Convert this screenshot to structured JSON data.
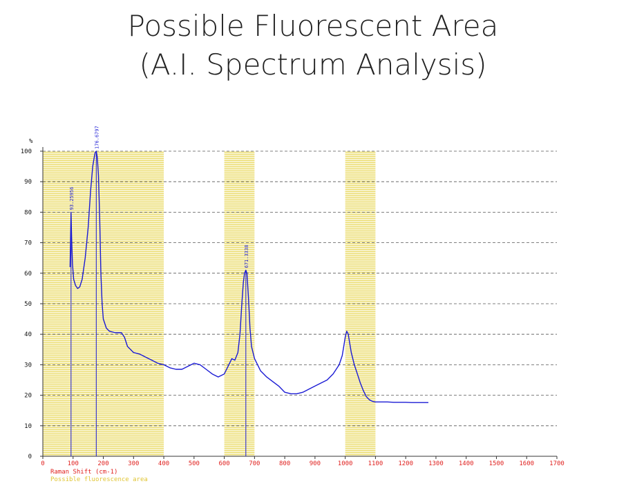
{
  "page": {
    "title_line1": "Possible Fluorescent Area",
    "title_line2": "(A.I. Spectrum Analysis)"
  },
  "chart_data": {
    "type": "line",
    "y_unit": "%",
    "xlabel": "Raman Shift (cm-1)",
    "legend_label": "Possible fluorescence area",
    "xlim": [
      0,
      1700
    ],
    "ylim": [
      0,
      100
    ],
    "x_ticks": [
      0,
      100,
      200,
      300,
      400,
      500,
      600,
      700,
      800,
      900,
      1000,
      1100,
      1200,
      1300,
      1400,
      1500,
      1600,
      1700
    ],
    "y_ticks": [
      0,
      10,
      20,
      30,
      40,
      50,
      60,
      70,
      80,
      90,
      100
    ],
    "grid": true,
    "colors": {
      "line": "#1a1ad4",
      "x_tick_labels": "#e0211f",
      "band_fill": "#f7f2c7",
      "band_lines": "#e9d75a",
      "legend_text": "#e0c533",
      "peak_label": "#1a1ad4"
    },
    "fluorescence_bands": [
      [
        0,
        400
      ],
      [
        600,
        700
      ],
      [
        1000,
        1100
      ]
    ],
    "peaks": [
      {
        "x": 93.25956,
        "y": 80,
        "label": "93.25956"
      },
      {
        "x": 176.6797,
        "y": 100,
        "label": "176.6797"
      },
      {
        "x": 671.3338,
        "y": 61,
        "label": "671.3338"
      }
    ],
    "series": [
      {
        "x": [
          90,
          93.26,
          95,
          98,
          102,
          108,
          115,
          122,
          130,
          140,
          150,
          158,
          165,
          170,
          173,
          176.68,
          180,
          184,
          188,
          192,
          196,
          200,
          210,
          220,
          240,
          260,
          270,
          280,
          300,
          320,
          340,
          360,
          380,
          400,
          420,
          440,
          460,
          480,
          500,
          520,
          540,
          560,
          580,
          600,
          615,
          625,
          635,
          645,
          652,
          658,
          663,
          667,
          671.33,
          675,
          680,
          685,
          690,
          700,
          720,
          740,
          760,
          780,
          800,
          820,
          840,
          860,
          880,
          900,
          920,
          940,
          960,
          980,
          990,
          995,
          1000,
          1005,
          1010,
          1015,
          1020,
          1030,
          1040,
          1050,
          1060,
          1070,
          1080,
          1090,
          1100,
          1120,
          1140,
          1160,
          1180,
          1200,
          1220,
          1240,
          1260,
          1275
        ],
        "values": [
          62,
          80,
          72,
          63,
          58,
          56,
          55,
          55.5,
          58,
          65,
          75,
          87,
          95,
          98,
          99.5,
          100,
          98,
          92,
          78,
          60,
          50,
          45,
          42,
          41,
          40.5,
          40.5,
          39,
          36,
          34,
          33.5,
          32.5,
          31.5,
          30.5,
          30,
          29,
          28.5,
          28.5,
          29.5,
          30.5,
          30,
          28.5,
          27,
          26,
          27,
          30,
          32,
          31.5,
          34,
          40,
          50,
          57,
          60,
          61,
          60,
          52,
          42,
          36,
          32,
          28,
          26,
          24.5,
          23,
          21,
          20.5,
          20.5,
          21,
          22,
          23,
          24,
          25,
          27,
          30,
          33,
          36,
          39,
          41,
          40,
          37,
          34,
          30,
          27,
          24,
          21.5,
          19.5,
          18.5,
          18,
          17.8,
          17.8,
          17.8,
          17.7,
          17.7,
          17.7,
          17.6,
          17.6,
          17.6,
          17.6
        ]
      }
    ]
  }
}
